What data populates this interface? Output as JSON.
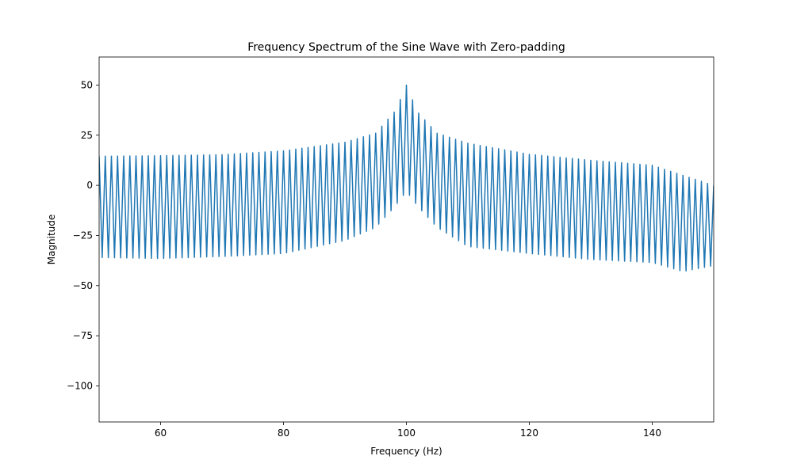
{
  "chart_data": {
    "type": "line",
    "title": "Frequency Spectrum of the Sine Wave with Zero-padding",
    "xlabel": "Frequency (Hz)",
    "ylabel": "Magnitude",
    "xlim": [
      50,
      150
    ],
    "ylim": [
      -118,
      64
    ],
    "xticks": [
      60,
      80,
      100,
      120,
      140
    ],
    "yticks": [
      50,
      25,
      0,
      -25,
      -50,
      -75,
      -100
    ],
    "grid": false,
    "series": [
      {
        "color": "#1f77b4",
        "spacing_hz": 0.5,
        "peak": {
          "x": 100,
          "y": 50
        },
        "upper_envelope": [
          [
            50,
            14.5
          ],
          [
            60,
            14.8
          ],
          [
            70,
            15.3
          ],
          [
            80,
            17.2
          ],
          [
            90,
            21.5
          ],
          [
            95,
            26
          ],
          [
            98,
            36.5
          ],
          [
            99.5,
            46
          ],
          [
            100,
            50
          ],
          [
            100.5,
            46
          ],
          [
            102,
            36
          ],
          [
            105,
            26
          ],
          [
            110,
            21
          ],
          [
            120,
            15.5
          ],
          [
            130,
            12.5
          ],
          [
            140,
            10
          ],
          [
            150,
            0
          ]
        ],
        "lower_envelope": [
          [
            50,
            -36
          ],
          [
            60,
            -36.5
          ],
          [
            70,
            -35.5
          ],
          [
            80,
            -34
          ],
          [
            90,
            -27.5
          ],
          [
            95,
            -21
          ],
          [
            98,
            -11
          ],
          [
            99.5,
            -5
          ],
          [
            100.5,
            -5
          ],
          [
            102,
            -11
          ],
          [
            105,
            -21
          ],
          [
            110,
            -30.5
          ],
          [
            120,
            -34
          ],
          [
            130,
            -37
          ],
          [
            140,
            -38.5
          ],
          [
            145,
            -43
          ],
          [
            150,
            -40
          ]
        ]
      }
    ]
  }
}
